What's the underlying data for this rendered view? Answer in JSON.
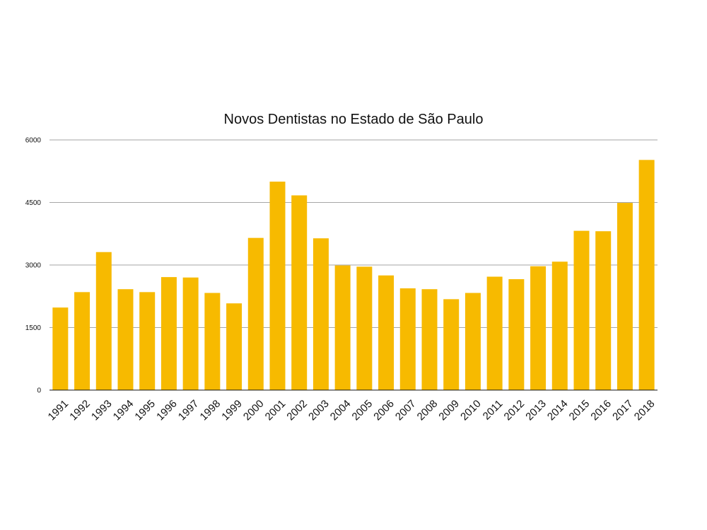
{
  "chart_data": {
    "type": "bar",
    "title": "Novos Dentistas no Estado de São Paulo",
    "xlabel": "",
    "ylabel": "",
    "categories": [
      "1991",
      "1992",
      "1993",
      "1994",
      "1995",
      "1996",
      "1997",
      "1998",
      "1999",
      "2000",
      "2001",
      "2002",
      "2003",
      "2004",
      "2005",
      "2006",
      "2007",
      "2008",
      "2009",
      "2010",
      "2011",
      "2012",
      "2013",
      "2014",
      "2015",
      "2016",
      "2017",
      "2018"
    ],
    "values": [
      1980,
      2350,
      3310,
      2420,
      2350,
      2710,
      2700,
      2330,
      2080,
      3650,
      5000,
      4670,
      3640,
      2990,
      2960,
      2750,
      2440,
      2420,
      2180,
      2330,
      2720,
      2660,
      2970,
      3080,
      3820,
      3810,
      4490,
      5520
    ],
    "ylim": [
      0,
      6000
    ],
    "yticks": [
      "0",
      "1500",
      "3000",
      "4500",
      "6000"
    ],
    "grid": true,
    "legend": "none",
    "bar_color": "#F7BA00"
  }
}
